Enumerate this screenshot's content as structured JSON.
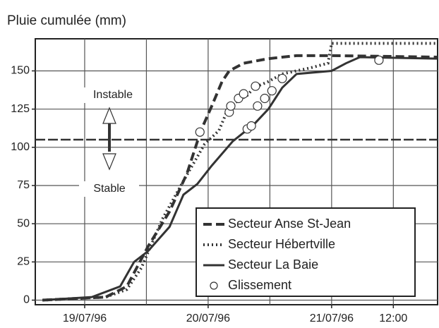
{
  "chart_data": {
    "type": "line",
    "title": "Pluie cumulée (mm)",
    "xlim": [
      -9.6,
      68.6
    ],
    "ylim": [
      -3,
      171
    ],
    "xticks": [
      {
        "value": 0,
        "label": "19/07/96"
      },
      {
        "value": 24,
        "label": "20/07/96"
      },
      {
        "value": 48,
        "label": "21/07/96"
      },
      {
        "value": 60,
        "label": "12:00"
      }
    ],
    "xgrid": [
      0,
      12,
      24,
      36,
      48,
      60
    ],
    "yticks": [
      0,
      25,
      50,
      75,
      100,
      125,
      150
    ],
    "grid": true,
    "legend": "lower right",
    "threshold": 105,
    "annotations": [
      "Instable",
      "Stable"
    ],
    "series": [
      {
        "name": "Secteur Anse St-Jean",
        "color": "#333",
        "dash": "12,6",
        "width": 4,
        "x": [
          -8.2,
          4.1,
          8.2,
          12.3,
          16.5,
          19.9,
          22.6,
          24.7,
          26.7,
          28.1,
          30.9,
          35.7,
          41.2,
          48,
          68.6
        ],
        "values": [
          0,
          2,
          9,
          35,
          58,
          83,
          111,
          127,
          143,
          150,
          155,
          158,
          160,
          160,
          159
        ]
      },
      {
        "name": "Secteur Hébertville",
        "color": "#333",
        "dash": "2,4",
        "width": 4,
        "x": [
          -8.2,
          4.1,
          8.2,
          11,
          15.1,
          19.2,
          23.3,
          26.1,
          28.1,
          31.6,
          32.9,
          35.7,
          38.4,
          43.9,
          47.3,
          48,
          68.6
        ],
        "values": [
          0,
          2,
          7,
          21,
          53,
          78,
          102,
          111,
          127,
          134,
          139,
          143,
          148,
          152,
          155,
          168,
          168
        ]
      },
      {
        "name": "Secteur La Baie",
        "color": "#333",
        "dash": "",
        "width": 3,
        "x": [
          -8.2,
          1.4,
          6.9,
          9.6,
          12.3,
          16.5,
          19.2,
          21.9,
          24.7,
          28.8,
          32.9,
          35.7,
          38.4,
          41.2,
          48,
          50.8,
          53.5,
          68.6
        ],
        "values": [
          0,
          2,
          9,
          25,
          32,
          48,
          69,
          76,
          88,
          104,
          115,
          125,
          139,
          148,
          150,
          155,
          159,
          158
        ]
      }
    ],
    "glissement": {
      "name": "Glissement",
      "color": "#333",
      "x": [
        22.4,
        28.1,
        28.4,
        29.9,
        30.9,
        33.2,
        31.6,
        32.4,
        33.6,
        35,
        36.4,
        38.4,
        57.2
      ],
      "values": [
        110,
        123,
        127,
        132,
        135,
        140,
        112,
        114,
        127,
        132,
        137,
        145,
        157
      ]
    }
  }
}
